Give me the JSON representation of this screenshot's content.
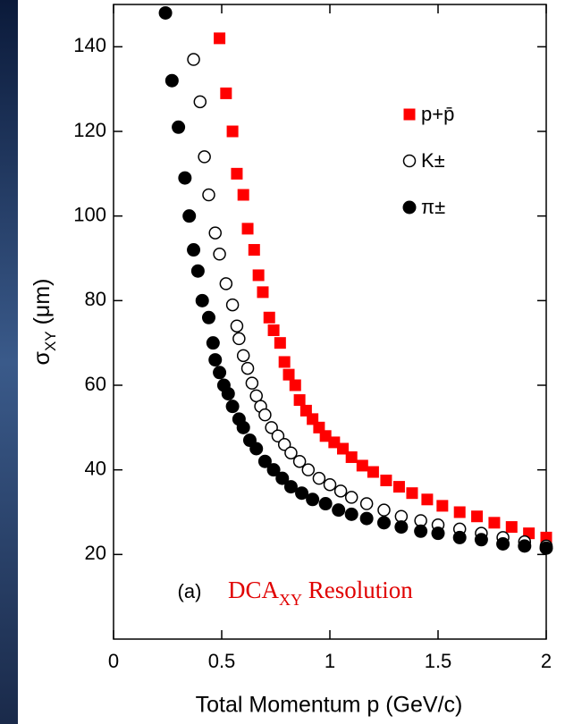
{
  "chart_data": {
    "type": "scatter",
    "x_label": "Total Momentum p (GeV/c)",
    "y_label": [
      "σ",
      "XY",
      " (μm)"
    ],
    "annotations": [
      "(a)",
      "DCA",
      "XY",
      " Resolution"
    ],
    "xlim": [
      0,
      2
    ],
    "ylim": [
      0,
      150
    ],
    "xticks": [
      0,
      0.5,
      1,
      1.5,
      2
    ],
    "yticks": [
      20,
      40,
      60,
      80,
      100,
      120,
      140
    ],
    "legend": "upper right",
    "series": [
      {
        "name": "p+p̄",
        "color": "#ff0000",
        "marker": "square",
        "x": [
          0.49,
          0.52,
          0.55,
          0.57,
          0.6,
          0.62,
          0.65,
          0.67,
          0.69,
          0.72,
          0.74,
          0.77,
          0.79,
          0.81,
          0.84,
          0.86,
          0.89,
          0.92,
          0.95,
          0.98,
          1.02,
          1.06,
          1.1,
          1.15,
          1.2,
          1.26,
          1.32,
          1.38,
          1.45,
          1.52,
          1.6,
          1.68,
          1.76,
          1.84,
          1.92,
          2.0
        ],
        "values": [
          142,
          129,
          120,
          110,
          105,
          97,
          92,
          86,
          82,
          76,
          73,
          70,
          65.5,
          62.5,
          60,
          56.5,
          54,
          52,
          50,
          48,
          46.5,
          45,
          43,
          41,
          39.5,
          37.5,
          36,
          34.5,
          33,
          31.5,
          30,
          29,
          27.5,
          26.5,
          25,
          24
        ]
      },
      {
        "name": "K±",
        "color": "#000000",
        "marker": "open-circle",
        "x": [
          0.37,
          0.4,
          0.42,
          0.44,
          0.47,
          0.49,
          0.52,
          0.55,
          0.57,
          0.58,
          0.6,
          0.62,
          0.64,
          0.66,
          0.68,
          0.7,
          0.73,
          0.76,
          0.79,
          0.82,
          0.86,
          0.9,
          0.95,
          1.0,
          1.05,
          1.1,
          1.17,
          1.25,
          1.33,
          1.42,
          1.5,
          1.6,
          1.7,
          1.8,
          1.9,
          2.0
        ],
        "values": [
          137,
          127,
          114,
          105,
          96,
          91,
          84,
          79,
          74,
          71,
          67,
          64,
          60.5,
          57.5,
          55,
          53,
          50,
          48,
          46,
          44,
          42,
          40,
          38,
          36.5,
          35,
          33.5,
          32,
          30.5,
          29,
          28,
          27,
          26,
          25,
          24,
          23,
          22
        ]
      },
      {
        "name": "π±",
        "color": "#000000",
        "marker": "circle",
        "x": [
          0.24,
          0.27,
          0.3,
          0.33,
          0.35,
          0.37,
          0.39,
          0.41,
          0.44,
          0.46,
          0.47,
          0.49,
          0.51,
          0.53,
          0.55,
          0.58,
          0.6,
          0.63,
          0.66,
          0.7,
          0.74,
          0.78,
          0.82,
          0.87,
          0.92,
          0.98,
          1.04,
          1.1,
          1.17,
          1.25,
          1.33,
          1.42,
          1.5,
          1.6,
          1.7,
          1.8,
          1.9,
          2.0
        ],
        "values": [
          148,
          132,
          121,
          109,
          100,
          92,
          87,
          80,
          76,
          70,
          66,
          63,
          60,
          58,
          55,
          52,
          50,
          47,
          45,
          42,
          40,
          38,
          36,
          34.5,
          33,
          32,
          30.5,
          29.5,
          28.5,
          27.5,
          26.5,
          25.5,
          25,
          24,
          23.5,
          22.5,
          22,
          21.5
        ]
      }
    ]
  }
}
